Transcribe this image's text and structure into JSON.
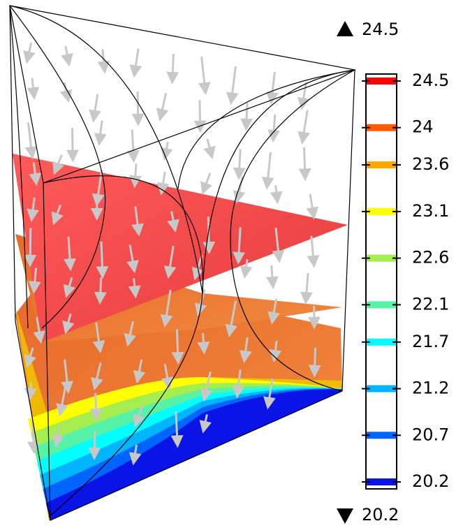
{
  "chart_data": {
    "type": "isosurface",
    "max": 24.5,
    "min": 20.2,
    "colorbar": {
      "range": [
        20.2,
        24.5
      ],
      "ticks": [
        24.5,
        24,
        23.6,
        23.1,
        22.6,
        22.1,
        21.7,
        21.2,
        20.7,
        20.2
      ],
      "colors": [
        "#ff0000",
        "#ff5a00",
        "#ffa500",
        "#ffff00",
        "#a6ee50",
        "#55f2a8",
        "#00ffff",
        "#00b4ff",
        "#0064ff",
        "#0a14e6"
      ]
    }
  }
}
